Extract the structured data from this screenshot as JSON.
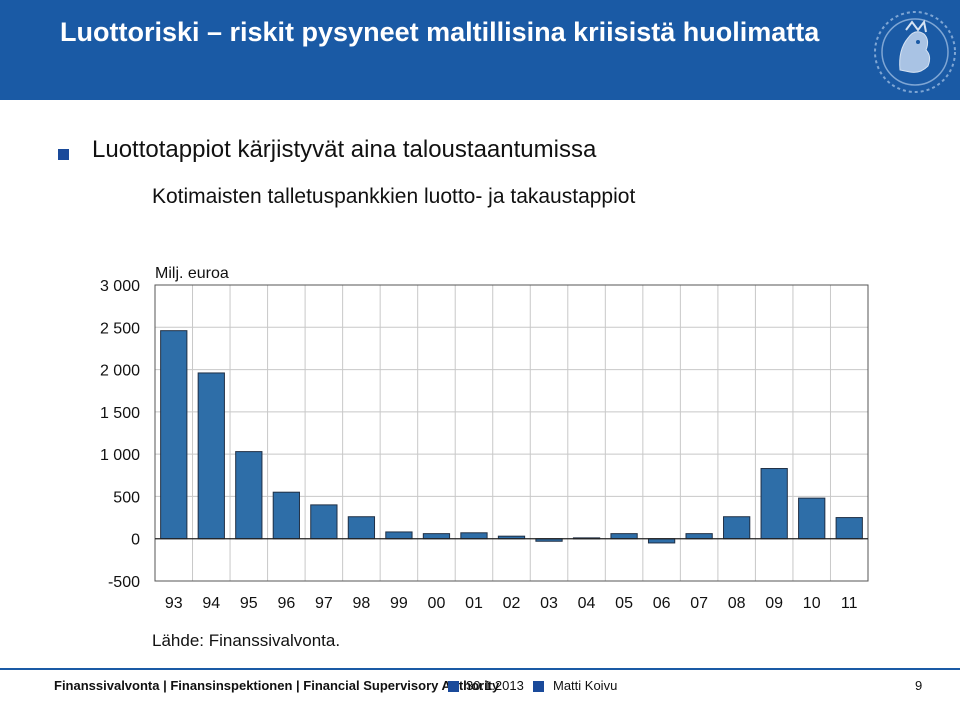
{
  "header": {
    "title": "Luottoriski – riskit pysyneet maltillisina kriisistä huolimatta",
    "logo_icon": "lion-crest-icon"
  },
  "bullet": {
    "text": "Luottotappiot kärjistyvät aina taloustaantumissa"
  },
  "subtitle": "Kotimaisten talletuspankkien luotto- ja takaustappiot",
  "chart_data": {
    "type": "bar",
    "unit_label": "Milj. euroa",
    "categories": [
      "93",
      "94",
      "95",
      "96",
      "97",
      "98",
      "99",
      "00",
      "01",
      "02",
      "03",
      "04",
      "05",
      "06",
      "07",
      "08",
      "09",
      "10",
      "11"
    ],
    "series": [
      {
        "values": [
          2460,
          1960,
          1030,
          550,
          400,
          260,
          80,
          60,
          70,
          30,
          -30,
          10,
          60,
          -50,
          60,
          260,
          830,
          480,
          250
        ]
      }
    ],
    "ylim": [
      -500,
      3000
    ],
    "yticks": [
      3000,
      2500,
      2000,
      1500,
      1000,
      500,
      0,
      -500
    ],
    "ytick_labels": [
      "3 000",
      "2 500",
      "2 000",
      "1 500",
      "1 000",
      "500",
      "0",
      "-500"
    ],
    "bar_color": "#2e6ea8",
    "grid": true
  },
  "source": "Lähde: Finanssivalvonta.",
  "footer": {
    "org": "Finanssivalvonta | Finansinspektionen | Financial Supervisory Authority",
    "date": "30.1.2013",
    "author": "Matti Koivu",
    "page": "9",
    "accent": "#1a4a9a"
  }
}
